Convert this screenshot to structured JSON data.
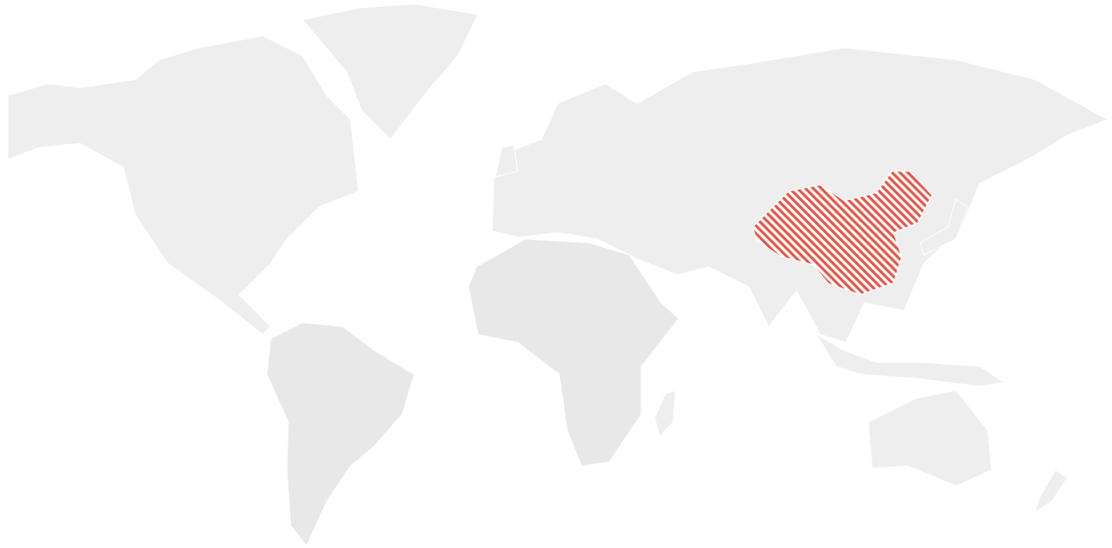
{
  "map": {
    "type": "world-choropleth",
    "highlighted_regions": [
      {
        "name": "China",
        "pattern": "diagonal-hatch",
        "color": "#e8574a"
      }
    ],
    "land_color": "#eeeeee",
    "background_color": "#ffffff"
  }
}
